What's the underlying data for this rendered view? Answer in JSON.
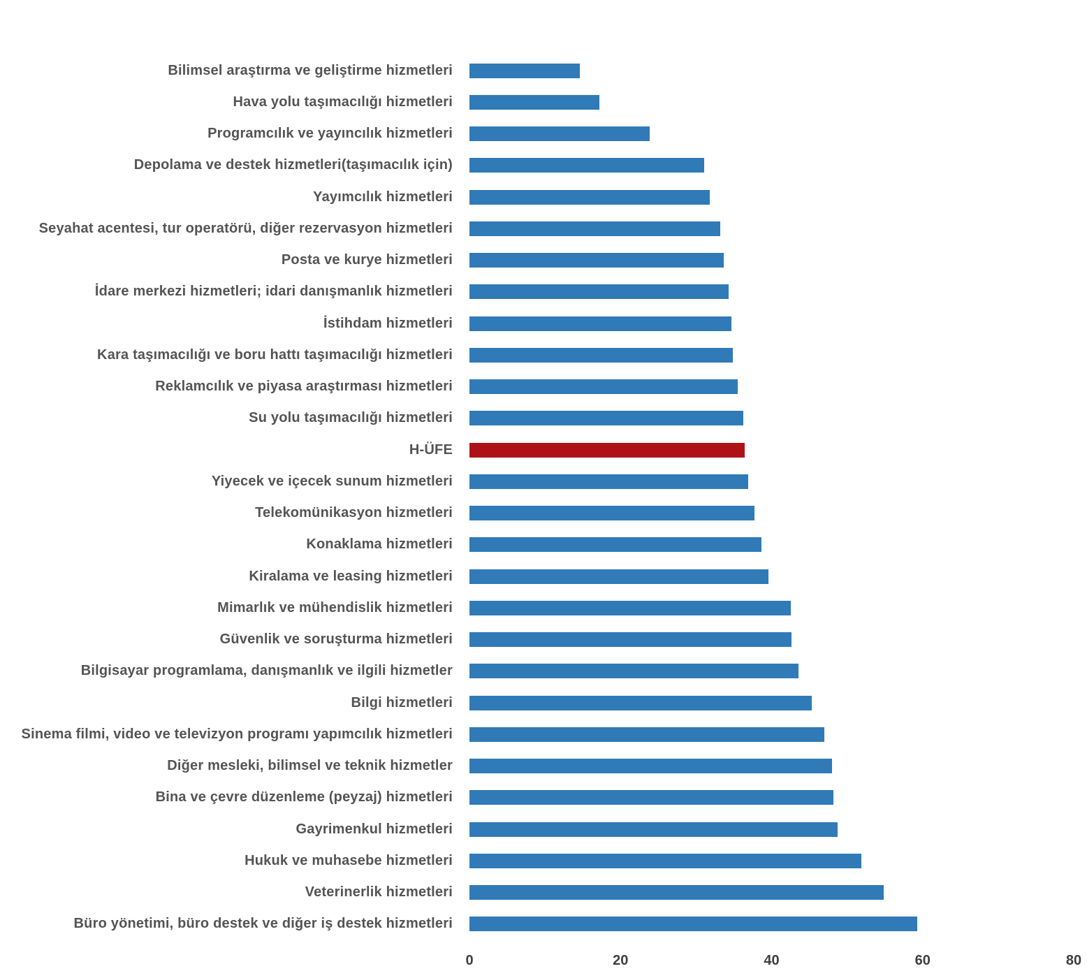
{
  "chart_data": {
    "type": "bar",
    "orientation": "horizontal",
    "title": "",
    "xlabel": "",
    "ylabel": "",
    "categories": [
      "Bilimsel araştırma ve geliştirme hizmetleri",
      "Hava yolu taşımacılığı hizmetleri",
      "Programcılık ve yayıncılık hizmetleri",
      "Depolama ve destek hizmetleri(taşımacılık için)",
      "Yayımcılık hizmetleri",
      "Seyahat acentesi, tur operatörü, diğer rezervasyon hizmetleri",
      "Posta ve kurye hizmetleri",
      "İdare merkezi hizmetleri; idari danışmanlık hizmetleri",
      "İstihdam hizmetleri",
      "Kara taşımacılığı ve boru hattı taşımacılığı hizmetleri",
      "Reklamcılık ve piyasa araştırması hizmetleri",
      "Su yolu taşımacılığı hizmetleri",
      "H-ÜFE",
      "Yiyecek ve içecek sunum hizmetleri",
      "Telekomünikasyon hizmetleri",
      "Konaklama hizmetleri",
      "Kiralama ve leasing hizmetleri",
      "Mimarlık ve mühendislik hizmetleri",
      "Güvenlik ve soruşturma hizmetleri",
      "Bilgisayar programlama, danışmanlık ve ilgili hizmetler",
      "Bilgi hizmetleri",
      "Sinema filmi, video ve televizyon programı yapımcılık hizmetleri",
      "Diğer mesleki, bilimsel ve teknik hizmetler",
      "Bina ve çevre düzenleme (peyzaj) hizmetleri",
      "Gayrimenkul hizmetleri",
      "Hukuk ve muhasebe hizmetleri",
      "Veterinerlik hizmetleri",
      "Büro yönetimi, büro destek ve diğer iş destek hizmetleri"
    ],
    "values": [
      14.6,
      17.2,
      23.9,
      31.1,
      31.8,
      33.2,
      33.7,
      34.3,
      34.7,
      34.9,
      35.5,
      36.3,
      36.4,
      36.9,
      37.7,
      38.7,
      39.6,
      42.5,
      42.6,
      43.6,
      45.3,
      47.0,
      48.0,
      48.2,
      48.7,
      51.9,
      54.8,
      59.3
    ],
    "highlight_index": 12,
    "highlight_label": "H-ÜFE",
    "bar_color": "#2F7AB7",
    "highlight_color": "#AE1217",
    "label_color": "#545454",
    "tick_color": "#3F3F3F",
    "xlim": [
      0,
      80
    ],
    "x_ticks": [
      0,
      20,
      40,
      60,
      80
    ],
    "grid": false,
    "legend": false
  }
}
